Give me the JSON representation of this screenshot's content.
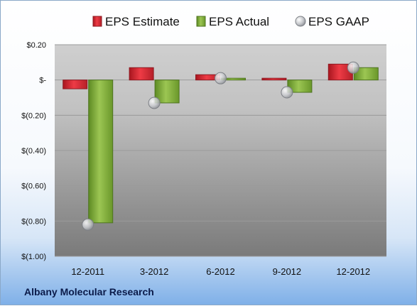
{
  "company": "Albany Molecular Research",
  "chart_data": {
    "type": "bar",
    "categories": [
      "12-2011",
      "3-2012",
      "6-2012",
      "9-2012",
      "12-2012"
    ],
    "series": [
      {
        "name": "EPS Estimate",
        "values": [
          -0.05,
          0.07,
          0.03,
          0.01,
          0.09
        ],
        "color": "#c0303a"
      },
      {
        "name": "EPS Actual",
        "values": [
          -0.81,
          -0.13,
          0.01,
          -0.07,
          0.07
        ],
        "color": "#7ea83a"
      },
      {
        "name": "EPS GAAP",
        "values": [
          -0.82,
          -0.13,
          0.01,
          -0.07,
          0.07
        ],
        "color": "#b9bcc2",
        "marker": "circle"
      }
    ],
    "ylim": [
      -1.0,
      0.2
    ],
    "yticks": [
      0.2,
      0,
      -0.2,
      -0.4,
      -0.6,
      -0.8,
      -1.0
    ],
    "ytick_labels": [
      "$0.20",
      "$-",
      "$(0.20)",
      "$(0.40)",
      "$(0.60)",
      "$(0.80)",
      "$(1.00)"
    ],
    "grid": true,
    "legend_position": "top"
  }
}
